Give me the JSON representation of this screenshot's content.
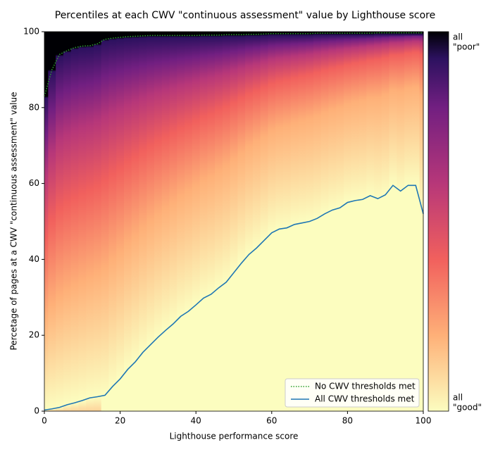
{
  "chart_data": {
    "type": "line",
    "title": "Percentiles at each CWV \"continuous assessment\" value by Lighthouse score",
    "x_label": "Lighthouse performance score",
    "y_label": "Percetage of pages at a CWV \"continuous assessment\" value",
    "x": [
      0,
      2,
      4,
      6,
      8,
      10,
      12,
      14,
      16,
      18,
      20,
      22,
      24,
      26,
      28,
      30,
      32,
      34,
      36,
      38,
      40,
      42,
      44,
      46,
      48,
      50,
      52,
      54,
      56,
      58,
      60,
      62,
      64,
      66,
      68,
      70,
      72,
      74,
      76,
      78,
      80,
      82,
      84,
      86,
      88,
      90,
      92,
      94,
      96,
      98,
      100
    ],
    "series": [
      {
        "name": "No CWV thresholds met",
        "color": "#2ca02c",
        "style": "dotted",
        "values": [
          83,
          90,
          94,
          95,
          95.8,
          96.2,
          96.3,
          96.8,
          98,
          98.3,
          98.5,
          98.7,
          98.8,
          98.9,
          99,
          99,
          99,
          99,
          99,
          99,
          99,
          99.1,
          99.1,
          99.1,
          99.2,
          99.2,
          99.2,
          99.3,
          99.3,
          99.4,
          99.5,
          99.5,
          99.5,
          99.5,
          99.5,
          99.5,
          99.6,
          99.6,
          99.6,
          99.6,
          99.6,
          99.6,
          99.6,
          99.6,
          99.7,
          99.7,
          99.7,
          99.7,
          99.7,
          99.7,
          99.7
        ]
      },
      {
        "name": "All CWV thresholds met",
        "color": "#1f77b4",
        "style": "solid",
        "values": [
          0.3,
          0.6,
          1,
          1.7,
          2.2,
          2.8,
          3.5,
          3.8,
          4.2,
          6.5,
          8.5,
          11,
          13,
          15.5,
          17.5,
          19.5,
          21.3,
          23,
          25,
          26.3,
          28,
          29.8,
          30.8,
          32.5,
          34,
          36.5,
          39,
          41.3,
          43,
          45,
          47,
          48,
          48.3,
          49.2,
          49.6,
          50,
          50.8,
          52,
          53,
          53.6,
          55,
          55.5,
          55.8,
          56.8,
          56,
          57,
          59.5,
          58,
          59.5,
          59.5,
          52
        ]
      }
    ],
    "xlim": [
      0,
      100
    ],
    "xticks": [
      0,
      20,
      40,
      60,
      80,
      100
    ],
    "ylim": [
      0,
      100
    ],
    "yticks": [
      0,
      20,
      40,
      60,
      80,
      100
    ],
    "legend": "lower right",
    "colorbar": {
      "top_label": [
        "all",
        "\"poor\""
      ],
      "bottom_label": [
        "all",
        "\"good\""
      ]
    }
  }
}
